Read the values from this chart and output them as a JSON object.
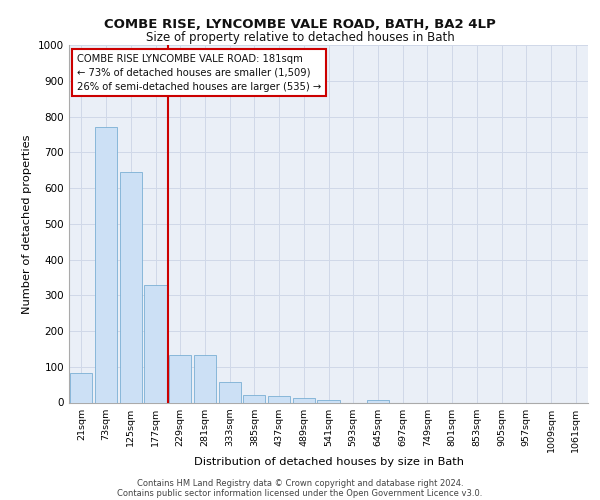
{
  "title_line1": "COMBE RISE, LYNCOMBE VALE ROAD, BATH, BA2 4LP",
  "title_line2": "Size of property relative to detached houses in Bath",
  "xlabel": "Distribution of detached houses by size in Bath",
  "ylabel": "Number of detached properties",
  "categories": [
    "21sqm",
    "73sqm",
    "125sqm",
    "177sqm",
    "229sqm",
    "281sqm",
    "333sqm",
    "385sqm",
    "437sqm",
    "489sqm",
    "541sqm",
    "593sqm",
    "645sqm",
    "697sqm",
    "749sqm",
    "801sqm",
    "853sqm",
    "905sqm",
    "957sqm",
    "1009sqm",
    "1061sqm"
  ],
  "values": [
    83,
    770,
    645,
    330,
    132,
    132,
    58,
    22,
    17,
    12,
    8,
    0,
    8,
    0,
    0,
    0,
    0,
    0,
    0,
    0,
    0
  ],
  "bar_color": "#cce0f5",
  "bar_edge_color": "#7bafd4",
  "property_line_x": 3.5,
  "annotation_line1": "COMBE RISE LYNCOMBE VALE ROAD: 181sqm",
  "annotation_line2": "← 73% of detached houses are smaller (1,509)",
  "annotation_line3": "26% of semi-detached houses are larger (535) →",
  "annotation_box_color": "#ffffff",
  "annotation_box_edge": "#cc0000",
  "property_line_color": "#cc0000",
  "footer_text": "Contains HM Land Registry data © Crown copyright and database right 2024.\nContains public sector information licensed under the Open Government Licence v3.0.",
  "ylim": [
    0,
    1000
  ],
  "yticks": [
    0,
    100,
    200,
    300,
    400,
    500,
    600,
    700,
    800,
    900,
    1000
  ],
  "grid_color": "#d0d8e8",
  "background_color": "#eaeff7",
  "fig_width": 6.0,
  "fig_height": 5.0,
  "dpi": 100
}
